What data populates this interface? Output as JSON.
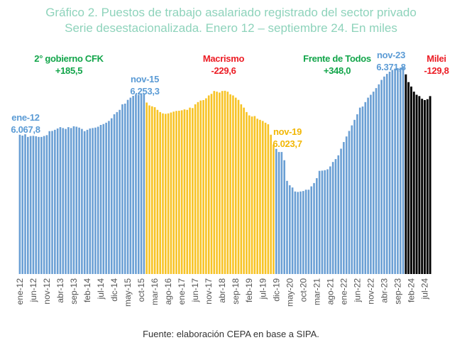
{
  "chart_data": {
    "type": "bar",
    "title": "Gráfico 2. Puestos de trabajo asalariado registrado del sector privado",
    "subtitle": "Serie desestacionalizada. Enero 12 – septiembre 24. En miles",
    "xlabel": "",
    "ylabel": "",
    "ylim": [
      5440,
      6400
    ],
    "grid": false,
    "start_month": "ene-12",
    "tick_labels": [
      "ene-12",
      "jun-12",
      "nov-12",
      "abr-13",
      "sep-13",
      "feb-14",
      "jul-14",
      "dic-14",
      "may-15",
      "oct-15",
      "mar-16",
      "ago-16",
      "ene-17",
      "jun-17",
      "nov-17",
      "abr-18",
      "sep-18",
      "feb-19",
      "jul-19",
      "dic-19",
      "may-20",
      "oct-20",
      "mar-21",
      "ago-21",
      "ene-22",
      "jun-22",
      "nov-22",
      "abr-23",
      "sep-23",
      "feb-24",
      "jul-24"
    ],
    "tick_every": 5,
    "periods": [
      {
        "name": "2° gobierno CFK",
        "change": "+185,5",
        "color": "#6a9fd4",
        "label_color": "#12a54a",
        "values": [
          6067.8,
          6064,
          6070,
          6058,
          6062,
          6063,
          6061,
          6058,
          6058,
          6062,
          6066,
          6084,
          6085,
          6090,
          6096,
          6102,
          6098,
          6094,
          6102,
          6098,
          6106,
          6104,
          6100,
          6094,
          6084,
          6090,
          6096,
          6098,
          6100,
          6104,
          6112,
          6116,
          6122,
          6130,
          6142,
          6160,
          6170,
          6180,
          6205,
          6208,
          6225,
          6235,
          6243,
          6250,
          6248,
          6250,
          6253.3
        ]
      },
      {
        "name": "Macrismo",
        "change": "-229,6",
        "color": "#f7c325",
        "label_color": "#ec1c24",
        "values": [
          6213,
          6200,
          6196,
          6192,
          6180,
          6170,
          6164,
          6162,
          6164,
          6168,
          6172,
          6175,
          6176,
          6178,
          6182,
          6180,
          6190,
          6188,
          6205,
          6215,
          6222,
          6224,
          6232,
          6245,
          6252,
          6265,
          6262,
          6258,
          6265,
          6266,
          6262,
          6250,
          6245,
          6235,
          6225,
          6205,
          6190,
          6170,
          6155,
          6150,
          6152,
          6140,
          6135,
          6130,
          6122,
          6115,
          6068,
          6023.7
        ]
      },
      {
        "name": "Frente de Todos",
        "change": "+348,0",
        "color": "#6a9fd4",
        "label_color": "#12a54a",
        "values": [
          6004,
          5990,
          5990,
          5953,
          5860,
          5840,
          5830,
          5812,
          5810,
          5812,
          5814,
          5820,
          5820,
          5835,
          5850,
          5872,
          5905,
          5906,
          5908,
          5912,
          5925,
          5945,
          5958,
          5975,
          6005,
          6035,
          6060,
          6085,
          6110,
          6135,
          6160,
          6190,
          6195,
          6215,
          6235,
          6248,
          6262,
          6278,
          6295,
          6315,
          6330,
          6342,
          6352,
          6360,
          6366,
          6368,
          6370,
          6371.8
        ]
      },
      {
        "name": "Milei",
        "change": "-129,8",
        "color": "#000000",
        "label_color": "#ec1c24",
        "values": [
          6340,
          6305,
          6285,
          6262,
          6248,
          6242,
          6230,
          6224,
          6228,
          6242.0
        ]
      }
    ],
    "point_labels": [
      {
        "month": "ene-12",
        "value": "6.067,8",
        "color": "#5b9bd5"
      },
      {
        "month": "nov-15",
        "value": "6.253,3",
        "color": "#5b9bd5"
      },
      {
        "month": "nov-19",
        "value": "6.023,7",
        "color": "#f2b705"
      },
      {
        "month": "nov-23",
        "value": "6.371,8",
        "color": "#5b9bd5"
      }
    ]
  },
  "footer": "Fuente: elaboración CEPA en base a SIPA."
}
